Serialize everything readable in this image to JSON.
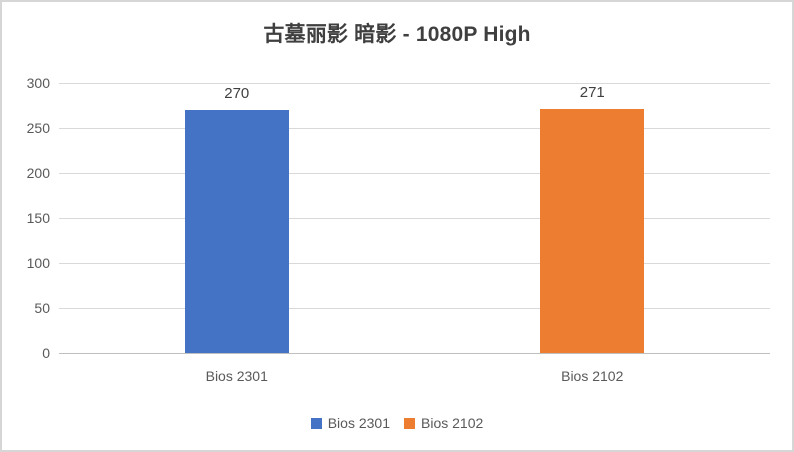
{
  "chart_data": {
    "type": "bar",
    "title": "古墓丽影 暗影 - 1080P High",
    "categories": [
      "Bios 2301",
      "Bios 2102"
    ],
    "values": [
      270,
      271
    ],
    "bar_colors": [
      "#4472C4",
      "#ED7D31"
    ],
    "data_labels": [
      "270",
      "271"
    ],
    "xlabel": "",
    "ylabel": "",
    "ylim": [
      0,
      300
    ],
    "ytick_step": 50,
    "ytick_labels": [
      "0",
      "50",
      "100",
      "150",
      "200",
      "250",
      "300"
    ],
    "grid": true,
    "legend_position": "bottom",
    "legend": [
      {
        "label": "Bios 2301",
        "color": "#4472C4"
      },
      {
        "label": "Bios 2102",
        "color": "#ED7D31"
      }
    ]
  },
  "style_colors": {
    "gridline": "#d9d9d9",
    "axis_line": "#bfbfbf",
    "frame_border": "#d6d6d6",
    "title_text": "#3f3f3f",
    "axis_text": "#595959",
    "data_label_text": "#404040"
  }
}
